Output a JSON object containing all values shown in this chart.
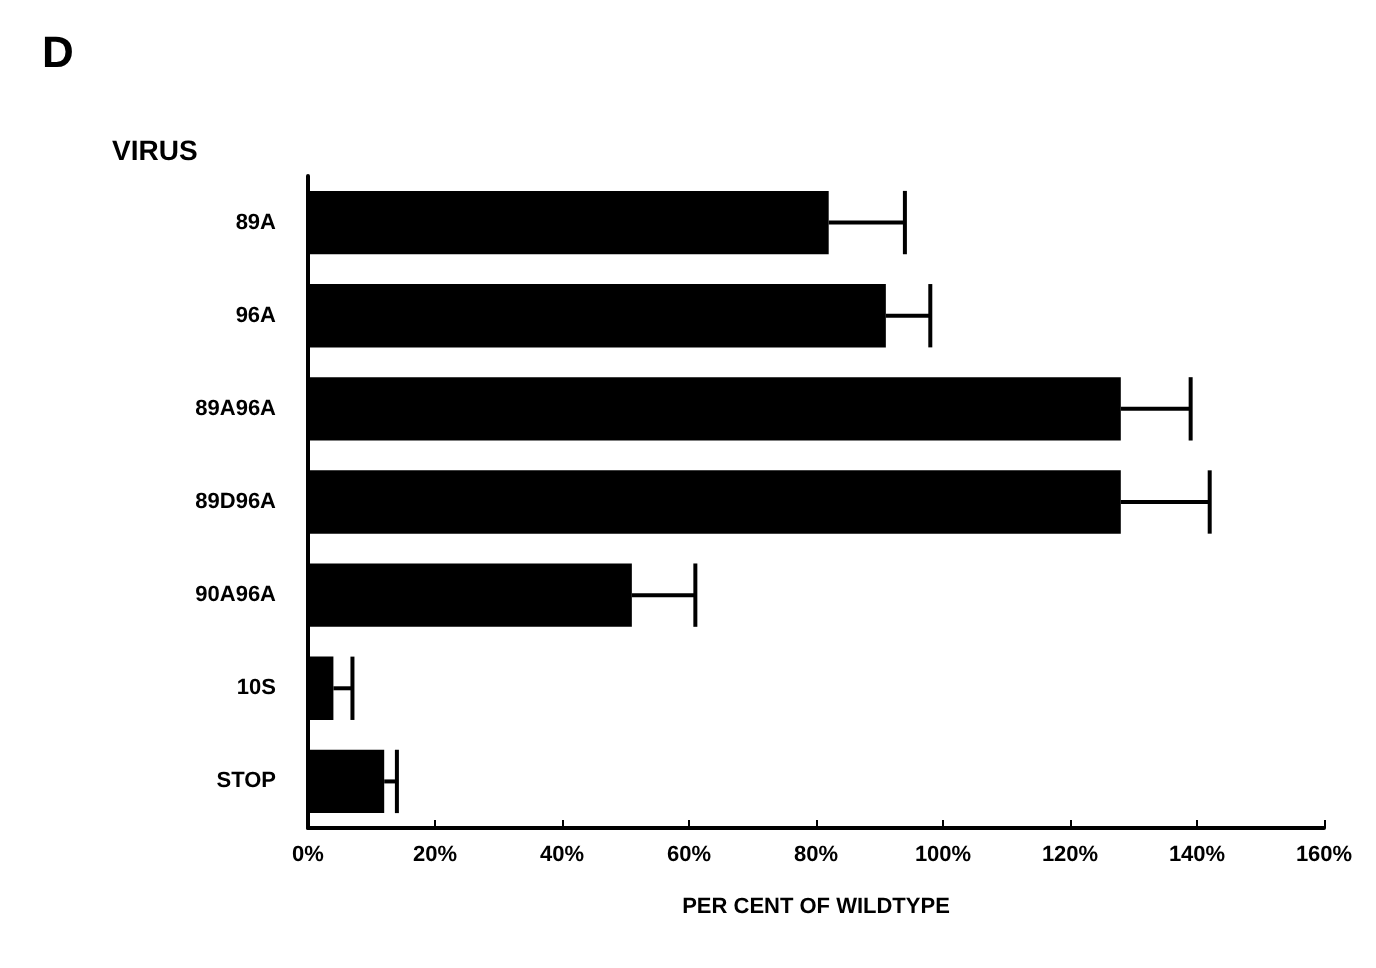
{
  "chart_data": {
    "type": "bar",
    "orientation": "horizontal",
    "title": "D",
    "ylabel": "VIRUS",
    "xlabel": "PER CENT OF WILDTYPE",
    "categories": [
      "89A",
      "96A",
      "89A96A",
      "89D96A",
      "90A96A",
      "10S",
      "STOP"
    ],
    "values": [
      82,
      91,
      128,
      128,
      51,
      4,
      12
    ],
    "errors": [
      [
        82,
        94
      ],
      [
        91,
        98
      ],
      [
        128,
        139
      ],
      [
        128,
        142
      ],
      [
        51,
        61
      ],
      [
        4,
        7
      ],
      [
        12,
        14
      ]
    ],
    "color": "#000000",
    "xlim": [
      0,
      160
    ],
    "xticks": [
      {
        "value": 0,
        "label": "0%"
      },
      {
        "value": 20,
        "label": "20%"
      },
      {
        "value": 40,
        "label": "40%"
      },
      {
        "value": 60,
        "label": "60%"
      },
      {
        "value": 80,
        "label": "80%"
      },
      {
        "value": 100,
        "label": "100%"
      },
      {
        "value": 120,
        "label": "120%"
      },
      {
        "value": 140,
        "label": "140%"
      },
      {
        "value": 160,
        "label": "160%"
      }
    ],
    "grid": false
  }
}
